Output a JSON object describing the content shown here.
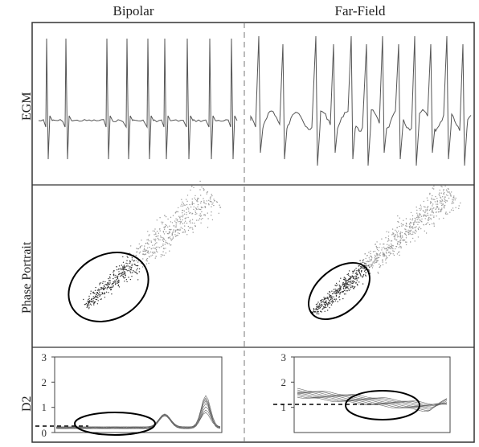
{
  "columns": [
    "Bipolar",
    "Far-Field"
  ],
  "rows": [
    "EGM",
    "Phase Portrait",
    "D2"
  ],
  "d2_axes": {
    "bipolar_ticks": [
      "0",
      "1",
      "2",
      "3"
    ],
    "farfield_ticks": [
      "1",
      "2",
      "3"
    ]
  },
  "colors": {
    "frame": "#333333",
    "trace": "#555555",
    "ellipse": "#000000",
    "divider": "#777777"
  }
}
